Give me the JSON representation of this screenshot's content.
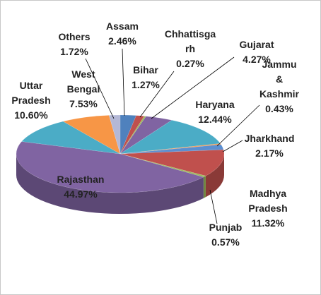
{
  "chart_data": {
    "type": "pie",
    "categories": [
      "Assam",
      "Bihar",
      "Chhattisgarh",
      "Gujarat",
      "Haryana",
      "Jammu & Kashmir",
      "Jharkhand",
      "Madhya Pradesh",
      "Punjab",
      "Rajasthan",
      "Uttar Pradesh",
      "West Bengal",
      "Others"
    ],
    "values": [
      2.46,
      1.27,
      0.27,
      4.27,
      12.44,
      0.43,
      2.17,
      11.32,
      0.57,
      44.97,
      10.6,
      7.53,
      1.72
    ],
    "value_labels": [
      "2.46%",
      "1.27%",
      "0.27%",
      "4.27%",
      "12.44%",
      "0.43%",
      "2.17%",
      "11.32%",
      "0.57%",
      "44.97%",
      "10.60%",
      "7.53%",
      "1.72%"
    ],
    "colors": [
      "#4f81bd",
      "#c0504d",
      "#9bbb59",
      "#8064a2",
      "#4bacc6",
      "#f79646",
      "#5b8fd1",
      "#c0504d",
      "#9bbb59",
      "#8064a2",
      "#4bacc6",
      "#f79646",
      "#b4b8d6"
    ]
  }
}
